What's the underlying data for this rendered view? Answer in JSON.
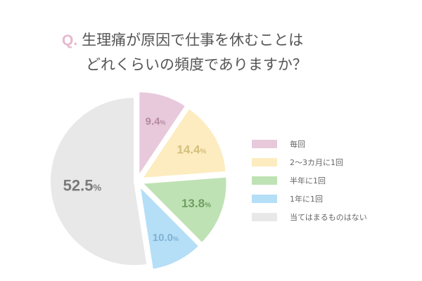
{
  "title": {
    "prefix": "Q.",
    "line1": "生理痛が原因で仕事を休むことは",
    "line2": "どれくらいの頻度でありますか？"
  },
  "chart_data": {
    "type": "pie",
    "title": "Q. 生理痛が原因で仕事を休むことはどれくらいの頻度でありますか？",
    "categories": [
      "毎回",
      "2〜3カ月に1回",
      "半年に1回",
      "1年に1回",
      "当てはまるものはない"
    ],
    "values": [
      9.4,
      14.4,
      13.8,
      10.0,
      52.5
    ],
    "unit": "%",
    "colors": [
      "#e8c9db",
      "#fcecc0",
      "#bfe2b4",
      "#b5def7",
      "#e8e8e8"
    ],
    "label_colors": [
      "#b58aa2",
      "#d4bf7e",
      "#6f9f62",
      "#7fb2d3",
      "#7a7a7a"
    ],
    "legend_position": "right",
    "start_angle": "12 o'clock, clockwise, exploded slices"
  },
  "labels": [
    "9.4",
    "14.4",
    "13.8",
    "10.0",
    "52.5"
  ],
  "percent_sign": "%",
  "legend": [
    {
      "label": "毎回",
      "color": "#e8c9db"
    },
    {
      "label": "2〜3カ月に1回",
      "color": "#fcecc0"
    },
    {
      "label": "半年に1回",
      "color": "#bfe2b4"
    },
    {
      "label": "1年に1回",
      "color": "#b5def7"
    },
    {
      "label": "当てはまるものはない",
      "color": "#e8e8e8"
    }
  ]
}
